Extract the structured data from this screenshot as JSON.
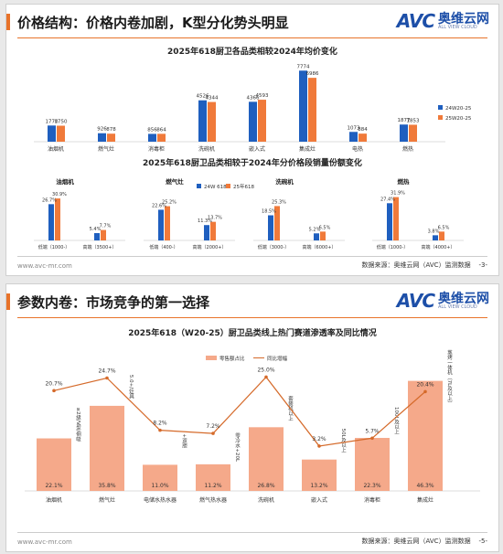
{
  "slide1": {
    "title": "价格结构：价格内卷加剧，K型分化势头明显",
    "logo_mark": "AVC",
    "logo_cn": "奥维云网",
    "logo_en": "ALL VIEW CLOUD",
    "source": "数据来源：奥维云网（AVC）监测数据",
    "page": "-3-",
    "url": "www.avc-mr.com"
  },
  "slide2": {
    "title": "参数内卷：市场竞争的第一选择",
    "logo_mark": "AVC",
    "logo_cn": "奥维云网",
    "logo_en": "ALL VIEW CLOUD",
    "source": "数据来源：奥维云网（AVC）监测数据",
    "page": "-5-",
    "url": "www.avc-mr.com"
  },
  "colors": {
    "blue": "#1f5fbf",
    "orange": "#f07a3a",
    "salmon": "#f5a98a",
    "line": "#d56a2a"
  },
  "chart_data": [
    {
      "type": "bar",
      "title": "2025年618厨卫各品类相较2024年均价变化",
      "categories": [
        "油烟机",
        "燃气灶",
        "消毒柜",
        "洗碗机",
        "嵌入式",
        "集成灶",
        "电热",
        "燃热"
      ],
      "series": [
        {
          "name": "24W20-25",
          "values": [
            1770,
            926,
            856,
            4526,
            4366,
            7774,
            1073,
            1877
          ]
        },
        {
          "name": "25W20-25",
          "values": [
            1750,
            878,
            864,
            4344,
            4593,
            6986,
            884,
            1853
          ]
        }
      ],
      "value_labels": [
        [
          "1770",
          "926",
          "856",
          "4526",
          "4366",
          "7774",
          "1073",
          "1877"
        ],
        [
          "1750",
          "878",
          "864",
          "4344",
          "4593",
          "6986",
          "884",
          "1853"
        ]
      ]
    },
    {
      "type": "bar",
      "title": "2025年618厨卫品类相较于2024年分价格段销量份额变化",
      "groups": [
        {
          "name": "油烟机",
          "categories": [
            "低端（1000-）",
            "高端（3500+）"
          ],
          "v24": [
            26.7,
            5.4
          ],
          "v25": [
            30.9,
            7.7
          ],
          "labels24": [
            "26.7%",
            "5.4%"
          ],
          "labels25": [
            "30.9%",
            "7.7%"
          ]
        },
        {
          "name": "燃气灶",
          "categories": [
            "低端（400-）",
            "高端（2000+）"
          ],
          "v24": [
            22.6,
            11.3
          ],
          "v25": [
            25.2,
            13.7
          ],
          "labels24": [
            "22.6%",
            "11.3%"
          ],
          "labels25": [
            "25.2%",
            "13.7%"
          ]
        },
        {
          "name": "洗碗机",
          "categories": [
            "低端（3000-）",
            "高端（6000+）"
          ],
          "v24": [
            18.5,
            5.2
          ],
          "v25": [
            25.3,
            6.5
          ],
          "labels24": [
            "18.5%",
            "5.2%"
          ],
          "labels25": [
            "25.3%",
            "6.5%"
          ]
        },
        {
          "name": "燃热",
          "categories": [
            "低端（1000-）",
            "高端（4000+）"
          ],
          "v24": [
            27.4,
            3.8
          ],
          "v25": [
            31.9,
            6.5
          ],
          "labels24": [
            "27.4%",
            "3.8%"
          ],
          "labels25": [
            "31.9%",
            "6.5%"
          ]
        }
      ],
      "series_names": [
        "24W 618",
        "25年618"
      ]
    },
    {
      "type": "bar+line",
      "title": "2025年618（W20-25）厨卫品类线上热门赛道渗透率及同比情况",
      "legend": [
        "零售额占比",
        "同比增幅"
      ],
      "categories": [
        "油烟机",
        "燃气灶",
        "电储水热水器",
        "燃气热水器",
        "洗碗机",
        "嵌入式",
        "消毒柜",
        "集成灶"
      ],
      "bar_labels": [
        "≥2级/V型/侧吸",
        "5.0+/灶具",
        "+双胆",
        "零冷水+20L",
        "套装机以上",
        "50L及以上",
        "100L及以上",
        "蒸烤一体机（7L及以上）"
      ],
      "share": [
        22.1,
        35.8,
        11.0,
        11.2,
        26.8,
        13.2,
        22.3,
        46.3
      ],
      "share_labels": [
        "22.1%",
        "35.8%",
        "11.0%",
        "11.2%",
        "26.8%",
        "13.2%",
        "22.3%",
        "46.3%"
      ],
      "yoy": [
        20.7,
        24.7,
        8.2,
        7.2,
        25.0,
        3.2,
        5.7,
        20.4
      ],
      "yoy_labels": [
        "20.7%",
        "24.7%",
        "8.2%",
        "7.2%",
        "25.0%",
        "3.2%",
        "5.7%",
        "20.4%"
      ]
    }
  ]
}
